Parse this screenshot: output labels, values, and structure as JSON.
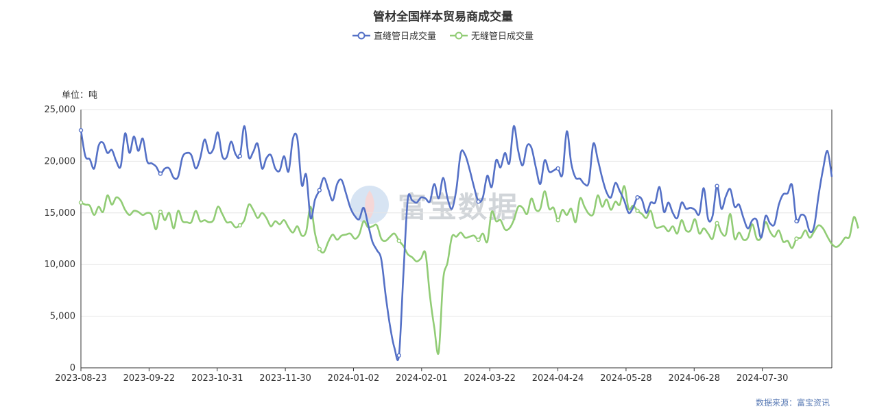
{
  "title": "管材全国样本贸易商成交量",
  "unit_label": "单位：吨",
  "source": "数据来源：富宝资讯",
  "watermark": "富宝数据",
  "colors": {
    "series1": "#5470c6",
    "series2": "#91cc75",
    "grid": "#e6e6e6",
    "axis": "#333333"
  },
  "chart_data": {
    "type": "line",
    "title": "管材全国样本贸易商成交量",
    "ylabel": "单位：吨",
    "ylim": [
      0,
      25000
    ],
    "yticks": [
      0,
      5000,
      10000,
      15000,
      20000,
      25000
    ],
    "ytick_labels": [
      "0",
      "5,000",
      "10,000",
      "15,000",
      "20,000",
      "25,000"
    ],
    "xtick_labels": [
      "2023-08-23",
      "2023-09-22",
      "2023-10-31",
      "2023-11-30",
      "2024-01-02",
      "2024-02-01",
      "2024-03-22",
      "2024-04-24",
      "2024-05-28",
      "2024-06-28",
      "2024-07-30"
    ],
    "grid": true,
    "legend": "top-center",
    "series": [
      {
        "name": "直缝管日成交量",
        "values": [
          23000,
          20500,
          20200,
          19300,
          21500,
          21800,
          20800,
          21100,
          20000,
          19500,
          22700,
          20800,
          22400,
          21000,
          22200,
          20000,
          19800,
          19500,
          18800,
          19300,
          19300,
          18400,
          18500,
          20400,
          20800,
          20600,
          19300,
          20300,
          22100,
          20800,
          21200,
          22800,
          20500,
          20400,
          21900,
          20700,
          20500,
          23400,
          20400,
          20900,
          21700,
          19300,
          20300,
          20600,
          19300,
          19100,
          20500,
          19000,
          22200,
          22200,
          17700,
          18700,
          14500,
          16300,
          17200,
          18400,
          17300,
          16200,
          17800,
          18200,
          16900,
          15500,
          14700,
          14400,
          15500,
          13900,
          12200,
          11400,
          10500,
          7000,
          4000,
          1900,
          1200,
          9000,
          16300,
          16200,
          16000,
          16500,
          16400,
          16100,
          17800,
          16400,
          18400,
          16400,
          15400,
          17300,
          20800,
          20600,
          19200,
          17500,
          16100,
          16500,
          18600,
          17500,
          20100,
          19400,
          20800,
          19800,
          23400,
          21000,
          19600,
          21500,
          21300,
          19400,
          17800,
          20100,
          19000,
          19100,
          19300,
          18700,
          22900,
          19800,
          18400,
          18300,
          17800,
          18000,
          21700,
          20200,
          18400,
          17000,
          16500,
          17900,
          17100,
          16200,
          15000,
          15500,
          16500,
          16300,
          15000,
          16000,
          16000,
          17500,
          15100,
          16000,
          15000,
          14500,
          16000,
          15400,
          15500,
          15300,
          14900,
          17400,
          14400,
          14700,
          17600,
          15400,
          16600,
          17300,
          15600,
          15800,
          14500,
          13500,
          14300,
          14300,
          12600,
          14700,
          14000,
          13900,
          15800,
          16800,
          16900,
          17700,
          14200,
          14800,
          14600,
          13200,
          13700,
          16700,
          19200,
          21000,
          18500
        ]
      },
      {
        "name": "无缝管日成交量",
        "values": [
          16000,
          15800,
          15700,
          14800,
          15600,
          15100,
          16700,
          15800,
          16500,
          16200,
          15300,
          14800,
          15200,
          15100,
          14800,
          15000,
          14800,
          13400,
          15100,
          14300,
          15000,
          13500,
          15200,
          14200,
          14100,
          14100,
          15200,
          14200,
          14300,
          14100,
          14300,
          15600,
          14900,
          14100,
          14100,
          13600,
          13800,
          14300,
          15800,
          15300,
          14500,
          15000,
          14500,
          13700,
          14200,
          13900,
          14300,
          13600,
          13100,
          13700,
          12800,
          13200,
          15600,
          13000,
          11500,
          11200,
          12200,
          12900,
          12400,
          12800,
          12900,
          13000,
          12500,
          12900,
          14200,
          13600,
          13700,
          13800,
          12500,
          12300,
          12700,
          13000,
          12300,
          11800,
          11000,
          10700,
          10300,
          10600,
          11100,
          7000,
          3900,
          1500,
          8500,
          10200,
          12700,
          12700,
          13100,
          12600,
          12700,
          12800,
          12400,
          13000,
          12200,
          15100,
          14200,
          14300,
          13400,
          13500,
          14300,
          15600,
          15500,
          14900,
          16400,
          15300,
          15400,
          17100,
          15400,
          15500,
          14300,
          15300,
          14800,
          15400,
          14100,
          16400,
          15600,
          14900,
          14900,
          16700,
          15600,
          16300,
          15300,
          16100,
          15800,
          17600,
          15400,
          15700,
          15200,
          14900,
          14500,
          15200,
          13700,
          13600,
          13700,
          13200,
          13700,
          13000,
          14300,
          13300,
          13300,
          14400,
          13000,
          13500,
          13000,
          12500,
          14000,
          13100,
          12900,
          14900,
          12500,
          13100,
          12400,
          12600,
          13900,
          12500,
          12600,
          14100,
          13200,
          12700,
          13300,
          12200,
          12300,
          11600,
          12500,
          12600,
          13300,
          12600,
          13200,
          13800,
          13500,
          12700,
          12000,
          11700,
          12000,
          12600,
          12700,
          14600,
          13500
        ]
      }
    ]
  }
}
